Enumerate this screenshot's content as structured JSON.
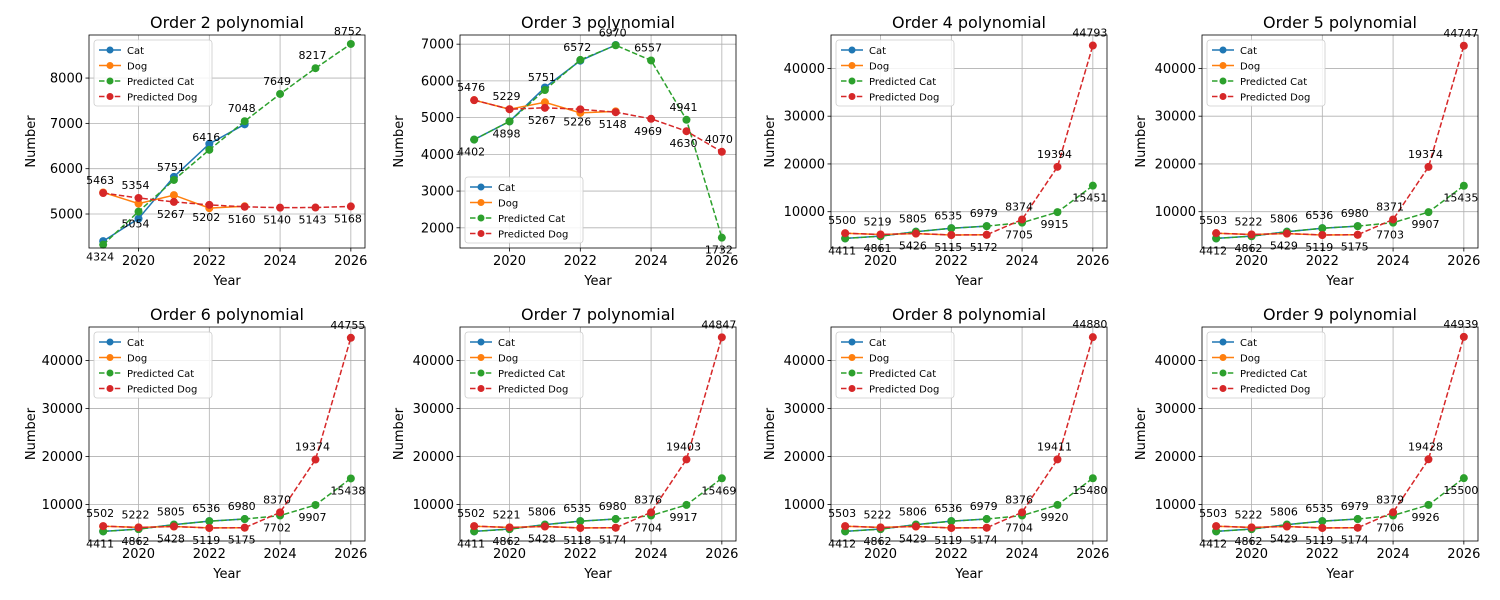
{
  "chart_data": [
    {
      "type": "line",
      "title": "Order 2 polynomial",
      "xlabel": "Year",
      "ylabel": "Number",
      "grid": true,
      "legend_placement": "upper-left",
      "xlim": [
        2018.6,
        2026.4
      ],
      "ylim": [
        4250,
        8950
      ],
      "xticks": [
        2020,
        2022,
        2024,
        2026
      ],
      "yticks": [
        5000,
        6000,
        7000,
        8000
      ],
      "x": [
        2019,
        2020,
        2021,
        2022,
        2023,
        2024,
        2025,
        2026
      ],
      "series": [
        {
          "name": "Cat",
          "color": "#1f77b4",
          "dashed": false,
          "values": [
            4402,
            4898,
            5820,
            6550,
            6979,
            null,
            null,
            null
          ]
        },
        {
          "name": "Dog",
          "color": "#ff7f0e",
          "dashed": false,
          "values": [
            5476,
            5229,
            5418,
            5130,
            5170,
            null,
            null,
            null
          ]
        },
        {
          "name": "Predicted Cat",
          "color": "#2ca02c",
          "dashed": true,
          "values": [
            4324,
            5054,
            5751,
            6416,
            7048,
            7649,
            8217,
            8752
          ]
        },
        {
          "name": "Predicted Dog",
          "color": "#d62728",
          "dashed": true,
          "values": [
            5463,
            5354,
            5267,
            5202,
            5160,
            5140,
            5143,
            5168
          ]
        }
      ],
      "labels": [
        {
          "series": "Predicted Cat",
          "values": [
            "4324",
            "5054",
            "5751",
            "6416",
            "7048",
            "7649",
            "8217",
            "8752"
          ]
        },
        {
          "series": "Predicted Dog",
          "values": [
            "5463",
            "5354",
            "5267",
            "5202",
            "5160",
            "5140",
            "5143",
            "5168"
          ]
        }
      ]
    },
    {
      "type": "line",
      "title": "Order 3 polynomial",
      "xlabel": "Year",
      "ylabel": "Number",
      "grid": true,
      "legend_placement": "lower-left",
      "xlim": [
        2018.6,
        2026.4
      ],
      "ylim": [
        1450,
        7250
      ],
      "xticks": [
        2020,
        2022,
        2024,
        2026
      ],
      "yticks": [
        2000,
        3000,
        4000,
        5000,
        6000,
        7000
      ],
      "x": [
        2019,
        2020,
        2021,
        2022,
        2023,
        2024,
        2025,
        2026
      ],
      "series": [
        {
          "name": "Cat",
          "color": "#1f77b4",
          "dashed": false,
          "values": [
            4402,
            4898,
            5820,
            6550,
            6979,
            null,
            null,
            null
          ]
        },
        {
          "name": "Dog",
          "color": "#ff7f0e",
          "dashed": false,
          "values": [
            5476,
            5229,
            5418,
            5130,
            5170,
            null,
            null,
            null
          ]
        },
        {
          "name": "Predicted Cat",
          "color": "#2ca02c",
          "dashed": true,
          "values": [
            4402,
            4898,
            5751,
            6572,
            6970,
            6557,
            4941,
            1732
          ]
        },
        {
          "name": "Predicted Dog",
          "color": "#d62728",
          "dashed": true,
          "values": [
            5476,
            5229,
            5267,
            5226,
            5148,
            4969,
            4630,
            4070
          ]
        }
      ],
      "labels": [
        {
          "series": "Predicted Cat",
          "values": [
            "4402",
            "4898",
            "5751",
            "6572",
            "6970",
            "6557",
            "4941",
            "1732"
          ]
        },
        {
          "series": "Predicted Dog",
          "values": [
            "5476",
            "5229",
            "5267",
            "5226",
            "5148",
            "4969",
            "4630",
            "4070"
          ]
        }
      ]
    },
    {
      "type": "line",
      "title": "Order 4 polynomial",
      "xlabel": "Year",
      "ylabel": "Number",
      "grid": true,
      "legend_placement": "upper-left",
      "xlim": [
        2018.6,
        2026.4
      ],
      "ylim": [
        2400,
        47000
      ],
      "xticks": [
        2020,
        2022,
        2024,
        2026
      ],
      "yticks": [
        10000,
        20000,
        30000,
        40000
      ],
      "x": [
        2019,
        2020,
        2021,
        2022,
        2023,
        2024,
        2025,
        2026
      ],
      "series": [
        {
          "name": "Cat",
          "color": "#1f77b4",
          "dashed": false,
          "values": [
            4402,
            4898,
            5820,
            6550,
            6979,
            null,
            null,
            null
          ]
        },
        {
          "name": "Dog",
          "color": "#ff7f0e",
          "dashed": false,
          "values": [
            5476,
            5229,
            5418,
            5130,
            5170,
            null,
            null,
            null
          ]
        },
        {
          "name": "Predicted Cat",
          "color": "#2ca02c",
          "dashed": true,
          "values": [
            4411,
            4861,
            5805,
            6535,
            6979,
            7705,
            9915,
            15451
          ]
        },
        {
          "name": "Predicted Dog",
          "color": "#d62728",
          "dashed": true,
          "values": [
            5500,
            5219,
            5426,
            5115,
            5172,
            8374,
            19394,
            44793
          ]
        }
      ],
      "labels": [
        {
          "series": "Predicted Cat",
          "values": [
            "4411",
            "4861",
            "5805",
            "6535",
            "6979",
            "7705",
            "9915",
            "15451"
          ]
        },
        {
          "series": "Predicted Dog",
          "values": [
            "5500",
            "5219",
            "5426",
            "5115",
            "5172",
            "8374",
            "19394",
            "44793"
          ]
        }
      ]
    },
    {
      "type": "line",
      "title": "Order 5 polynomial",
      "xlabel": "Year",
      "ylabel": "Number",
      "grid": true,
      "legend_placement": "upper-left",
      "xlim": [
        2018.6,
        2026.4
      ],
      "ylim": [
        2400,
        47000
      ],
      "xticks": [
        2020,
        2022,
        2024,
        2026
      ],
      "yticks": [
        10000,
        20000,
        30000,
        40000
      ],
      "x": [
        2019,
        2020,
        2021,
        2022,
        2023,
        2024,
        2025,
        2026
      ],
      "series": [
        {
          "name": "Cat",
          "color": "#1f77b4",
          "dashed": false,
          "values": [
            4402,
            4898,
            5820,
            6550,
            6979,
            null,
            null,
            null
          ]
        },
        {
          "name": "Dog",
          "color": "#ff7f0e",
          "dashed": false,
          "values": [
            5476,
            5229,
            5418,
            5130,
            5170,
            null,
            null,
            null
          ]
        },
        {
          "name": "Predicted Cat",
          "color": "#2ca02c",
          "dashed": true,
          "values": [
            4412,
            4862,
            5806,
            6536,
            6980,
            7703,
            9907,
            15435
          ]
        },
        {
          "name": "Predicted Dog",
          "color": "#d62728",
          "dashed": true,
          "values": [
            5503,
            5222,
            5429,
            5119,
            5175,
            8371,
            19374,
            44747
          ]
        }
      ],
      "labels": [
        {
          "series": "Predicted Cat",
          "values": [
            "4412",
            "4862",
            "5806",
            "6536",
            "6980",
            "7703",
            "9907",
            "15435"
          ]
        },
        {
          "series": "Predicted Dog",
          "values": [
            "5503",
            "5222",
            "5429",
            "5119",
            "5175",
            "8371",
            "19374",
            "44747"
          ]
        }
      ]
    },
    {
      "type": "line",
      "title": "Order 6 polynomial",
      "xlabel": "Year",
      "ylabel": "Number",
      "grid": true,
      "legend_placement": "upper-left",
      "xlim": [
        2018.6,
        2026.4
      ],
      "ylim": [
        2400,
        47000
      ],
      "xticks": [
        2020,
        2022,
        2024,
        2026
      ],
      "yticks": [
        10000,
        20000,
        30000,
        40000
      ],
      "x": [
        2019,
        2020,
        2021,
        2022,
        2023,
        2024,
        2025,
        2026
      ],
      "series": [
        {
          "name": "Cat",
          "color": "#1f77b4",
          "dashed": false,
          "values": [
            4402,
            4898,
            5820,
            6550,
            6979,
            null,
            null,
            null
          ]
        },
        {
          "name": "Dog",
          "color": "#ff7f0e",
          "dashed": false,
          "values": [
            5476,
            5229,
            5418,
            5130,
            5170,
            null,
            null,
            null
          ]
        },
        {
          "name": "Predicted Cat",
          "color": "#2ca02c",
          "dashed": true,
          "values": [
            4411,
            4862,
            5805,
            6536,
            6980,
            7702,
            9907,
            15438
          ]
        },
        {
          "name": "Predicted Dog",
          "color": "#d62728",
          "dashed": true,
          "values": [
            5502,
            5222,
            5428,
            5119,
            5175,
            8370,
            19374,
            44755
          ]
        }
      ],
      "labels": [
        {
          "series": "Predicted Cat",
          "values": [
            "4411",
            "4862",
            "5805",
            "6536",
            "6980",
            "7702",
            "9907",
            "15438"
          ]
        },
        {
          "series": "Predicted Dog",
          "values": [
            "5502",
            "5222",
            "5428",
            "5119",
            "5175",
            "8370",
            "19374",
            "44755"
          ]
        }
      ]
    },
    {
      "type": "line",
      "title": "Order 7 polynomial",
      "xlabel": "Year",
      "ylabel": "Number",
      "grid": true,
      "legend_placement": "upper-left",
      "xlim": [
        2018.6,
        2026.4
      ],
      "ylim": [
        2400,
        47000
      ],
      "xticks": [
        2020,
        2022,
        2024,
        2026
      ],
      "yticks": [
        10000,
        20000,
        30000,
        40000
      ],
      "x": [
        2019,
        2020,
        2021,
        2022,
        2023,
        2024,
        2025,
        2026
      ],
      "series": [
        {
          "name": "Cat",
          "color": "#1f77b4",
          "dashed": false,
          "values": [
            4402,
            4898,
            5820,
            6550,
            6979,
            null,
            null,
            null
          ]
        },
        {
          "name": "Dog",
          "color": "#ff7f0e",
          "dashed": false,
          "values": [
            5476,
            5229,
            5418,
            5130,
            5170,
            null,
            null,
            null
          ]
        },
        {
          "name": "Predicted Cat",
          "color": "#2ca02c",
          "dashed": true,
          "values": [
            4411,
            4862,
            5806,
            6535,
            6980,
            7704,
            9917,
            15469
          ]
        },
        {
          "name": "Predicted Dog",
          "color": "#d62728",
          "dashed": true,
          "values": [
            5502,
            5221,
            5428,
            5118,
            5174,
            8376,
            19403,
            44847
          ]
        }
      ],
      "labels": [
        {
          "series": "Predicted Cat",
          "values": [
            "4411",
            "4862",
            "5806",
            "6535",
            "6980",
            "7704",
            "9917",
            "15469"
          ]
        },
        {
          "series": "Predicted Dog",
          "values": [
            "5502",
            "5221",
            "5428",
            "5118",
            "5174",
            "8376",
            "19403",
            "44847"
          ]
        }
      ]
    },
    {
      "type": "line",
      "title": "Order 8 polynomial",
      "xlabel": "Year",
      "ylabel": "Number",
      "grid": true,
      "legend_placement": "upper-left",
      "xlim": [
        2018.6,
        2026.4
      ],
      "ylim": [
        2400,
        47000
      ],
      "xticks": [
        2020,
        2022,
        2024,
        2026
      ],
      "yticks": [
        10000,
        20000,
        30000,
        40000
      ],
      "x": [
        2019,
        2020,
        2021,
        2022,
        2023,
        2024,
        2025,
        2026
      ],
      "series": [
        {
          "name": "Cat",
          "color": "#1f77b4",
          "dashed": false,
          "values": [
            4402,
            4898,
            5820,
            6550,
            6979,
            null,
            null,
            null
          ]
        },
        {
          "name": "Dog",
          "color": "#ff7f0e",
          "dashed": false,
          "values": [
            5476,
            5229,
            5418,
            5130,
            5170,
            null,
            null,
            null
          ]
        },
        {
          "name": "Predicted Cat",
          "color": "#2ca02c",
          "dashed": true,
          "values": [
            4412,
            4862,
            5806,
            6536,
            6979,
            7704,
            9920,
            15480
          ]
        },
        {
          "name": "Predicted Dog",
          "color": "#d62728",
          "dashed": true,
          "values": [
            5503,
            5222,
            5429,
            5119,
            5174,
            8376,
            19411,
            44880
          ]
        }
      ],
      "labels": [
        {
          "series": "Predicted Cat",
          "values": [
            "4412",
            "4862",
            "5806",
            "6536",
            "6979",
            "7704",
            "9920",
            "15480"
          ]
        },
        {
          "series": "Predicted Dog",
          "values": [
            "5503",
            "5222",
            "5429",
            "5119",
            "5174",
            "8376",
            "19411",
            "44880"
          ]
        }
      ]
    },
    {
      "type": "line",
      "title": "Order 9 polynomial",
      "xlabel": "Year",
      "ylabel": "Number",
      "grid": true,
      "legend_placement": "upper-left",
      "xlim": [
        2018.6,
        2026.4
      ],
      "ylim": [
        2400,
        47000
      ],
      "xticks": [
        2020,
        2022,
        2024,
        2026
      ],
      "yticks": [
        10000,
        20000,
        30000,
        40000
      ],
      "x": [
        2019,
        2020,
        2021,
        2022,
        2023,
        2024,
        2025,
        2026
      ],
      "series": [
        {
          "name": "Cat",
          "color": "#1f77b4",
          "dashed": false,
          "values": [
            4402,
            4898,
            5820,
            6550,
            6979,
            null,
            null,
            null
          ]
        },
        {
          "name": "Dog",
          "color": "#ff7f0e",
          "dashed": false,
          "values": [
            5476,
            5229,
            5418,
            5130,
            5170,
            null,
            null,
            null
          ]
        },
        {
          "name": "Predicted Cat",
          "color": "#2ca02c",
          "dashed": true,
          "values": [
            4412,
            4862,
            5806,
            6535,
            6979,
            7706,
            9926,
            15500
          ]
        },
        {
          "name": "Predicted Dog",
          "color": "#d62728",
          "dashed": true,
          "values": [
            5503,
            5222,
            5429,
            5119,
            5174,
            8379,
            19428,
            44939
          ]
        }
      ],
      "labels": [
        {
          "series": "Predicted Cat",
          "values": [
            "4412",
            "4862",
            "5806",
            "6535",
            "6979",
            "7706",
            "9926",
            "15500"
          ]
        },
        {
          "series": "Predicted Dog",
          "values": [
            "5503",
            "5222",
            "5429",
            "5119",
            "5174",
            "8379",
            "19428",
            "44939"
          ]
        }
      ]
    }
  ]
}
